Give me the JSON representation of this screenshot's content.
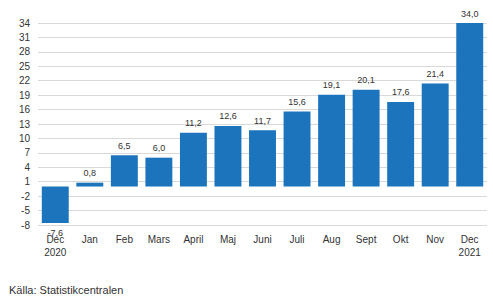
{
  "chart_data": {
    "type": "bar",
    "categories": [
      "Dec\n2020",
      "Jan",
      "Feb",
      "Mars",
      "April",
      "Maj",
      "Juni",
      "Juli",
      "Aug",
      "Sept",
      "Okt",
      "Nov",
      "Dec\n2021"
    ],
    "values": [
      -7.6,
      0.8,
      6.5,
      6.0,
      11.2,
      12.6,
      11.7,
      15.6,
      19.1,
      20.1,
      17.6,
      21.4,
      34.0
    ],
    "value_labels": [
      "-7,6",
      "0,8",
      "6,5",
      "6,0",
      "11,2",
      "12,6",
      "11,7",
      "15,6",
      "19,1",
      "20,1",
      "17,6",
      "21,4",
      "34,0"
    ],
    "color": "#1c75bc",
    "ylim": [
      -8,
      34
    ],
    "yticks": [
      -8,
      -5,
      -2,
      1,
      4,
      7,
      10,
      13,
      16,
      19,
      22,
      25,
      28,
      31,
      34
    ],
    "grid": true,
    "data_labels": true,
    "source": "Källa: Statistikcentralen"
  }
}
